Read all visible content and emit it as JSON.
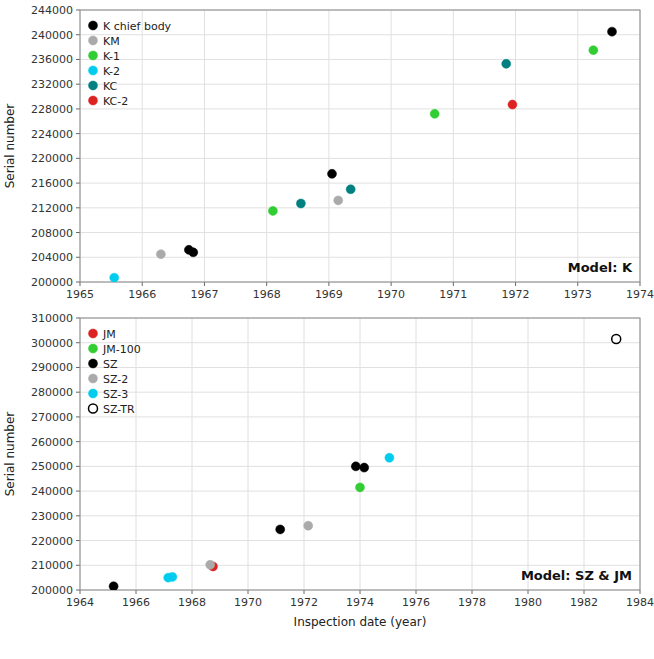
{
  "chart_data": [
    {
      "type": "scatter",
      "title": "Model: K",
      "ylabel": "Serial number",
      "xlim": [
        1965,
        1974
      ],
      "ylim": [
        200000,
        244000
      ],
      "xticks": [
        1965,
        1966,
        1967,
        1968,
        1969,
        1970,
        1971,
        1972,
        1973,
        1974
      ],
      "yticks": [
        200000,
        204000,
        208000,
        212000,
        216000,
        220000,
        224000,
        228000,
        232000,
        236000,
        240000,
        244000
      ],
      "grid": true,
      "legend": "upper-left",
      "series": [
        {
          "name": "K chief body",
          "color": "#000000",
          "marker": "circle",
          "x": [
            1969.05,
            1966.75,
            1966.82,
            1973.55
          ],
          "values": [
            217500,
            205200,
            204800,
            240500
          ]
        },
        {
          "name": "KM",
          "color": "#aaaaaa",
          "marker": "circle",
          "x": [
            1966.3,
            1969.15
          ],
          "values": [
            204500,
            213200
          ]
        },
        {
          "name": "K-1",
          "color": "#32cd32",
          "marker": "circle",
          "x": [
            1968.1,
            1970.7,
            1973.25
          ],
          "values": [
            211500,
            227200,
            237500
          ]
        },
        {
          "name": "K-2",
          "color": "#00ccee",
          "marker": "circle",
          "x": [
            1965.55
          ],
          "values": [
            200700
          ]
        },
        {
          "name": "KC",
          "color": "#008080",
          "marker": "circle",
          "x": [
            1968.55,
            1969.35,
            1971.85
          ],
          "values": [
            212700,
            215000,
            235300
          ]
        },
        {
          "name": "KC-2",
          "color": "#dd2222",
          "marker": "circle",
          "x": [
            1971.95
          ],
          "values": [
            228700
          ]
        }
      ]
    },
    {
      "type": "scatter",
      "title": "Model: SZ & JM",
      "ylabel": "Serial number",
      "xlabel": "Inspection date (year)",
      "xlim": [
        1964,
        1984
      ],
      "ylim": [
        200000,
        310000
      ],
      "xticks": [
        1964,
        1966,
        1968,
        1970,
        1972,
        1974,
        1976,
        1978,
        1980,
        1982,
        1984
      ],
      "yticks": [
        200000,
        210000,
        220000,
        230000,
        240000,
        250000,
        260000,
        270000,
        280000,
        290000,
        300000,
        310000
      ],
      "grid": true,
      "legend": "upper-left",
      "series": [
        {
          "name": "JM",
          "color": "#dd2222",
          "marker": "circle",
          "x": [
            1968.75
          ],
          "values": [
            209500
          ]
        },
        {
          "name": "JM-100",
          "color": "#32cd32",
          "marker": "circle",
          "x": [
            1974.0
          ],
          "values": [
            241500
          ]
        },
        {
          "name": "SZ",
          "color": "#000000",
          "marker": "circle",
          "x": [
            1965.2,
            1971.15,
            1973.85,
            1974.15
          ],
          "values": [
            201500,
            224500,
            250000,
            249500
          ]
        },
        {
          "name": "SZ-2",
          "color": "#aaaaaa",
          "marker": "circle",
          "x": [
            1968.65,
            1972.15
          ],
          "values": [
            210200,
            226000
          ]
        },
        {
          "name": "SZ-3",
          "color": "#00ccee",
          "marker": "circle",
          "x": [
            1967.15,
            1967.3,
            1975.05
          ],
          "values": [
            205000,
            205300,
            253500
          ]
        },
        {
          "name": "SZ-TR",
          "color": "#000000",
          "marker": "open-circle",
          "x": [
            1983.15
          ],
          "values": [
            301500
          ]
        }
      ]
    }
  ]
}
